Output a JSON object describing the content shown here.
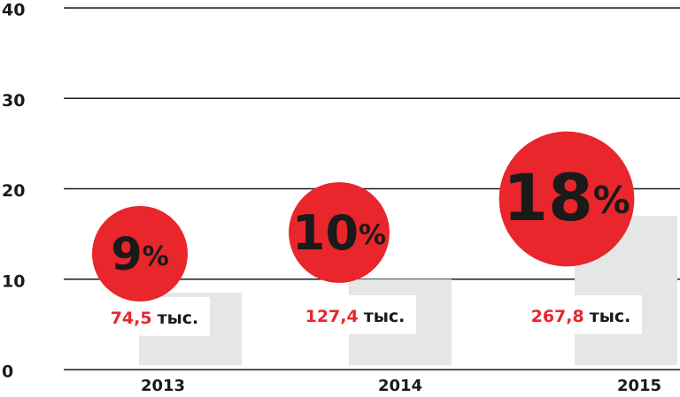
{
  "chart_data": {
    "type": "bar",
    "categories": [
      "2013",
      "2014",
      "2015"
    ],
    "values": [
      8.5,
      10,
      17
    ],
    "color": "#e5e6e6",
    "ylim": [
      0,
      40
    ],
    "yticks": [
      0,
      10,
      20,
      30,
      40
    ],
    "grid": true,
    "share": {
      "values": [
        9,
        10,
        18
      ],
      "value_labels": [
        "9%",
        "10%",
        "18%"
      ],
      "color": "#e8262b"
    },
    "count": {
      "values": [
        74.5,
        127.4,
        267.8
      ],
      "value_labels": [
        "74,5",
        "127,4",
        "267,8"
      ],
      "unit": "тыс."
    }
  }
}
